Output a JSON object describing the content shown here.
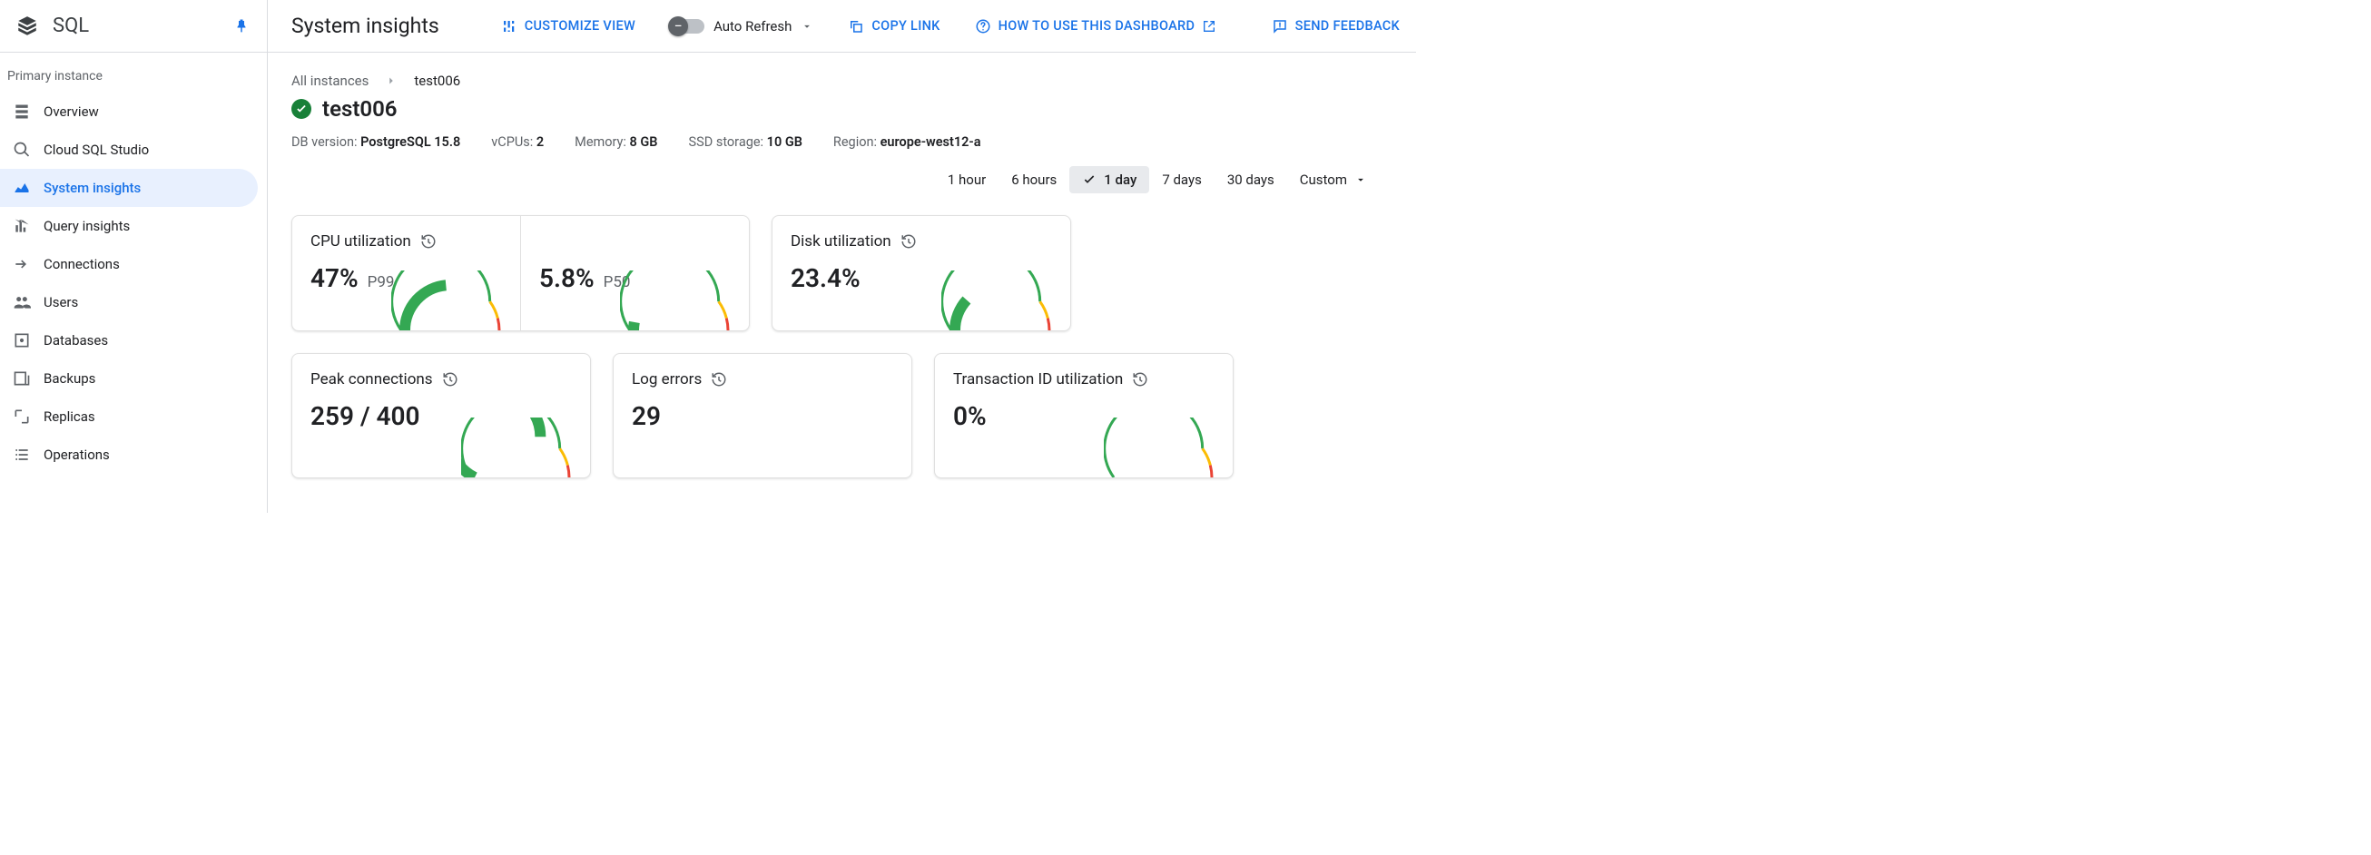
{
  "product": {
    "name": "SQL"
  },
  "sidebar": {
    "section_label": "Primary instance",
    "items": [
      {
        "id": "overview",
        "label": "Overview"
      },
      {
        "id": "cloud-sql-studio",
        "label": "Cloud SQL Studio"
      },
      {
        "id": "system-insights",
        "label": "System insights",
        "selected": true
      },
      {
        "id": "query-insights",
        "label": "Query insights"
      },
      {
        "id": "connections",
        "label": "Connections"
      },
      {
        "id": "users",
        "label": "Users"
      },
      {
        "id": "databases",
        "label": "Databases"
      },
      {
        "id": "backups",
        "label": "Backups"
      },
      {
        "id": "replicas",
        "label": "Replicas"
      },
      {
        "id": "operations",
        "label": "Operations"
      }
    ]
  },
  "header": {
    "title": "System insights",
    "customize_view": "CUSTOMIZE VIEW",
    "auto_refresh_label": "Auto Refresh",
    "auto_refresh_on": false,
    "copy_link": "COPY LINK",
    "how_to_use": "HOW TO USE THIS DASHBOARD",
    "send_feedback": "SEND FEEDBACK"
  },
  "breadcrumb": {
    "parent": "All instances",
    "current": "test006"
  },
  "instance": {
    "name": "test006",
    "status": "healthy",
    "meta": {
      "db_version_label": "DB version:",
      "db_version": "PostgreSQL 15.8",
      "vcpus_label": "vCPUs:",
      "vcpus": "2",
      "memory_label": "Memory:",
      "memory": "8 GB",
      "ssd_label": "SSD storage:",
      "ssd": "10 GB",
      "region_label": "Region:",
      "region": "europe-west12-a"
    }
  },
  "time_range": {
    "options": [
      {
        "id": "1h",
        "label": "1 hour"
      },
      {
        "id": "6h",
        "label": "6 hours"
      },
      {
        "id": "1d",
        "label": "1 day",
        "selected": true
      },
      {
        "id": "7d",
        "label": "7 days"
      },
      {
        "id": "30d",
        "label": "30 days"
      },
      {
        "id": "custom",
        "label": "Custom"
      }
    ]
  },
  "gauge_colors": {
    "green": "#34a853",
    "yellow": "#fbbc04",
    "red": "#ea4335",
    "track": "#ffffff"
  },
  "cards": {
    "cpu": {
      "title": "CPU utilization",
      "p99": {
        "value": "47%",
        "label": "P99",
        "fraction": 0.47
      },
      "p50": {
        "value": "5.8%",
        "label": "P50",
        "fraction": 0.058
      }
    },
    "disk": {
      "title": "Disk utilization",
      "value": "23.4%",
      "fraction": 0.234
    },
    "peak": {
      "title": "Peak connections",
      "value": "259 / 400",
      "fraction": 0.6475
    },
    "logs": {
      "title": "Log errors",
      "value": "29"
    },
    "txid": {
      "title": "Transaction ID utilization",
      "value": "0%",
      "fraction": 0.0
    }
  }
}
